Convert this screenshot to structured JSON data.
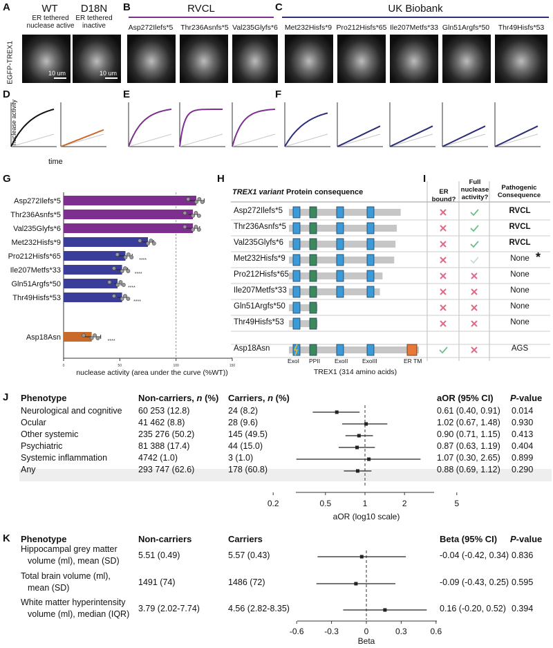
{
  "panels": {
    "A": "A",
    "B": "B",
    "C": "C",
    "D": "D",
    "E": "E",
    "F": "F",
    "G": "G",
    "H": "H",
    "I": "I",
    "J": "J",
    "K": "K"
  },
  "rowA": {
    "wt_title": "WT",
    "wt_sub1": "ER tethered",
    "wt_sub2": "nuclease active",
    "d18n_title": "D18N",
    "d18n_sub1": "ER tethered",
    "d18n_sub2": "inactive",
    "y_label": "EGFP-TREX1",
    "scale1": "10 um",
    "scale2": "10 um",
    "rvcl_title": "RVCL",
    "ukb_title": "UK Biobank",
    "micro_labels": [
      "Asp272Ilefs*5",
      "Thr236Asnfs*5",
      "Val235Glyfs*6",
      "Met232Hisfs*9",
      "Pro212Hisfs*65",
      "Ile207Metfs*33",
      "Gln51Argfs*50",
      "Thr49Hisfs*53"
    ]
  },
  "rowD": {
    "y_label": "nuclease activity",
    "x_label": "time",
    "curves": [
      {
        "color": "#111111",
        "rate": 0.35,
        "amp": 1.0
      },
      {
        "color": "#c86a2a",
        "rate": 0.0,
        "amp": 0.45
      },
      {
        "color": "#7d2e8e",
        "rate": 0.5,
        "amp": 1.0
      },
      {
        "color": "#7d2e8e",
        "rate": 1.6,
        "amp": 1.0
      },
      {
        "color": "#7d2e8e",
        "rate": 0.7,
        "amp": 1.0
      },
      {
        "color": "#2b2d7a",
        "rate": 0.32,
        "amp": 0.9
      },
      {
        "color": "#2b2d7a",
        "rate": 0.0,
        "amp": 0.55
      },
      {
        "color": "#2b2d7a",
        "rate": 0.0,
        "amp": 0.55
      },
      {
        "color": "#2b2d7a",
        "rate": 0.0,
        "amp": 0.55
      },
      {
        "color": "#2b2d7a",
        "rate": 0.0,
        "amp": 0.55
      }
    ]
  },
  "chart_data": {
    "type": "bar",
    "xlabel": "nuclease activity (area under the curve (%WT))",
    "xlim": [
      0,
      150
    ],
    "xticks": [
      "0",
      "50",
      "100",
      "150"
    ],
    "categories": [
      "Asp272Ilefs*5",
      "Thr236Asnfs*5",
      "Val235Glyfs*6",
      "Met232Hisfs*9",
      "Pro212Hisfs*65",
      "Ile207Metfs*33",
      "Gln51Argfs*50",
      "Thr49Hisfs*53",
      "Asp18Asn"
    ],
    "values": [
      118,
      115,
      115,
      75,
      55,
      52,
      48,
      52,
      25
    ],
    "errors": [
      7,
      4,
      6,
      5,
      6,
      5,
      3,
      4,
      8
    ],
    "colors": [
      "#7d2e8e",
      "#7d2e8e",
      "#7d2e8e",
      "#3a3e9a",
      "#3a3e9a",
      "#3a3e9a",
      "#3a3e9a",
      "#3a3e9a",
      "#c86a2a"
    ],
    "significance": [
      "",
      "",
      "",
      "",
      "****",
      "****",
      "****",
      "****",
      "****"
    ],
    "reference_line": 100
  },
  "tableH": {
    "col1": "TREX1 variant",
    "col2": "Protein consequence",
    "col3": "ER bound?",
    "col4a": "Full",
    "col4b": "nuclease",
    "col4c": "activity?",
    "col5a": "Pathogenic",
    "col5b": "Consequence",
    "rows": [
      {
        "variant": "Asp272Ilefs*5",
        "er": "no",
        "full": "yes",
        "cons": "RVCL",
        "bold": true,
        "len": 0.86
      },
      {
        "variant": "Thr236Asnfs*5",
        "er": "no",
        "full": "yes",
        "cons": "RVCL",
        "bold": true,
        "len": 0.83
      },
      {
        "variant": "Val235Glyfs*6",
        "er": "no",
        "full": "yes",
        "cons": "RVCL",
        "bold": true,
        "len": 0.82
      },
      {
        "variant": "Met232Hisfs*9",
        "er": "no",
        "full": "faint",
        "cons": "None",
        "bold": false,
        "len": 0.81
      },
      {
        "variant": "Pro212Hisfs*65",
        "er": "no",
        "full": "no",
        "cons": "None",
        "bold": false,
        "len": 0.72
      },
      {
        "variant": "Ile207Metfs*33",
        "er": "no",
        "full": "no",
        "cons": "None",
        "bold": false,
        "len": 0.7
      },
      {
        "variant": "Gln51Argfs*50",
        "er": "no",
        "full": "no",
        "cons": "None",
        "bold": false,
        "len": 0.22
      },
      {
        "variant": "Thr49Hisfs*53",
        "er": "no",
        "full": "no",
        "cons": "None",
        "bold": false,
        "len": 0.22
      },
      {
        "variant": "Asp18Asn",
        "er": "yes",
        "full": "no",
        "cons": "AGS",
        "bold": false,
        "len": 1.0
      }
    ],
    "domains": [
      "ExoI",
      "PPII",
      "ExoII",
      "ExoIII",
      "ER TM"
    ],
    "axis_label": "TREX1 (314 amino acids)",
    "asterisk": "*"
  },
  "tableJ": {
    "headers": {
      "phenotype": "Phenotype",
      "noncarriers": "Non-carriers, ",
      "noncarriers_n": "n",
      "noncarriers_pct": " (%)",
      "carriers": "Carriers, ",
      "carriers_n": "n",
      "carriers_pct": " (%)",
      "aor": "aOR (95% CI)",
      "p": "P",
      "p_rest": "-value"
    },
    "rows": [
      {
        "phenotype": "Neurological and cognitive",
        "non": "60 253 (12.8)",
        "car": "24 (8.2)",
        "aor": "0.61 (0.40, 0.91)",
        "p": "0.014",
        "est": 0.61,
        "lo": 0.4,
        "hi": 0.91
      },
      {
        "phenotype": "Ocular",
        "non": "41 462 (8.8)",
        "car": "28 (9.6)",
        "aor": "1.02 (0.67, 1.48)",
        "p": "0.930",
        "est": 1.02,
        "lo": 0.67,
        "hi": 1.48
      },
      {
        "phenotype": "Other systemic",
        "non": "235 276 (50.2)",
        "car": "145 (49.5)",
        "aor": "0.90 (0.71, 1.15)",
        "p": "0.413",
        "est": 0.9,
        "lo": 0.71,
        "hi": 1.15
      },
      {
        "phenotype": "Psychiatric",
        "non": "81 388 (17.4)",
        "car": "44 (15.0)",
        "aor": "0.87 (0.63, 1.19)",
        "p": "0.404",
        "est": 0.87,
        "lo": 0.63,
        "hi": 1.19
      },
      {
        "phenotype": "Systemic inflammation",
        "non": "4742 (1.0)",
        "car": "3 (1.0)",
        "aor": "1.07 (0.30, 2.65)",
        "p": "0.899",
        "est": 1.07,
        "lo": 0.3,
        "hi": 2.65
      },
      {
        "phenotype": "Any",
        "non": "293 747 (62.6)",
        "car": "178 (60.8)",
        "aor": "0.88 (0.69, 1.12)",
        "p": "0.290",
        "est": 0.88,
        "lo": 0.69,
        "hi": 1.12
      }
    ],
    "axis_ticks": [
      "0.2",
      "0.5",
      "1",
      "2",
      "5"
    ],
    "axis_values": [
      0.2,
      0.5,
      1,
      2,
      5
    ],
    "axis_label": "aOR (log10 scale)"
  },
  "tableK": {
    "headers": {
      "phenotype": "Phenotype",
      "non": "Non-carriers",
      "car": "Carriers",
      "beta": "Beta (95% CI)",
      "p": "P",
      "p_rest": "-value"
    },
    "rows": [
      {
        "line1": "Hippocampal grey matter",
        "line2": "volume (ml), mean (SD)",
        "non": "5.51 (0.49)",
        "car": "5.57 (0.43)",
        "beta": "-0.04 (-0.42, 0.34)",
        "p": "0.836",
        "est": -0.04,
        "lo": -0.42,
        "hi": 0.34
      },
      {
        "line1": "Total brain volume (ml),",
        "line2": "mean (SD)",
        "non": "1491 (74)",
        "car": "1486 (72)",
        "beta": "-0.09 (-0.43, 0.25)",
        "p": "0.595",
        "est": -0.09,
        "lo": -0.43,
        "hi": 0.25
      },
      {
        "line1": "White matter hyperintensity",
        "line2": "volume (ml), median (IQR)",
        "non": "3.79 (2.02-7.74)",
        "car": "4.56 (2.82-8.35)",
        "beta": "0.16 (-0.20, 0.52)",
        "p": "0.394",
        "est": 0.16,
        "lo": -0.2,
        "hi": 0.52
      }
    ],
    "axis_ticks": [
      "-0.6",
      "-0.3",
      "0",
      "0.3",
      "0.6"
    ],
    "axis_values": [
      -0.6,
      -0.3,
      0,
      0.3,
      0.6
    ],
    "axis_label": "Beta"
  }
}
